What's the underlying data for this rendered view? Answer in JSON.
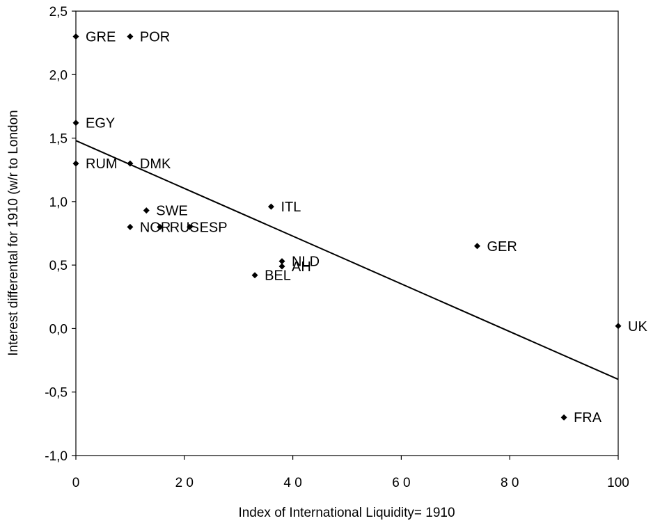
{
  "chart_data": {
    "type": "scatter",
    "title": "",
    "xlabel": "Index of International Liquidity= 1910",
    "ylabel": "Interest differental for 1910 (w/r to London",
    "xlim": [
      0,
      100
    ],
    "ylim": [
      -1.0,
      2.5
    ],
    "x_ticks": [
      0,
      20,
      40,
      60,
      80,
      100
    ],
    "x_tick_labels": [
      "0",
      "2 0",
      "4 0",
      "6 0",
      "8 0",
      "100"
    ],
    "y_ticks": [
      2.5,
      2.0,
      1.5,
      1.0,
      0.5,
      0.0,
      -0.5,
      -1.0
    ],
    "y_tick_labels": [
      "2,5",
      "2,0",
      "1,5",
      "1,0",
      "0,5",
      "0,0",
      "-0,5",
      "-1,0"
    ],
    "grid": false,
    "legend": "none",
    "marker": "diamond",
    "points": [
      {
        "label": "GRE",
        "x": 0,
        "y": 2.3
      },
      {
        "label": "POR",
        "x": 10,
        "y": 2.3
      },
      {
        "label": "EGY",
        "x": 0,
        "y": 1.62
      },
      {
        "label": "RUM",
        "x": 0,
        "y": 1.3
      },
      {
        "label": "DMK",
        "x": 10,
        "y": 1.3
      },
      {
        "label": "SWE",
        "x": 13,
        "y": 0.93
      },
      {
        "label": "ITL",
        "x": 36,
        "y": 0.96
      },
      {
        "label": "NOR",
        "x": 10,
        "y": 0.8
      },
      {
        "label": "RUS",
        "x": 15.5,
        "y": 0.8
      },
      {
        "label": "ESP",
        "x": 21,
        "y": 0.8
      },
      {
        "label": "NLD",
        "x": 38,
        "y": 0.53
      },
      {
        "label": "AH",
        "x": 38,
        "y": 0.49
      },
      {
        "label": "BEL",
        "x": 33,
        "y": 0.42
      },
      {
        "label": "GER",
        "x": 74,
        "y": 0.65
      },
      {
        "label": "UK",
        "x": 100,
        "y": 0.02
      },
      {
        "label": "FRA",
        "x": 90,
        "y": -0.7
      }
    ],
    "trendline": {
      "x": [
        0,
        100
      ],
      "y": [
        1.48,
        -0.4
      ]
    },
    "colors": {
      "marker": "#000000",
      "line": "#000000",
      "frame": "#000000"
    }
  }
}
